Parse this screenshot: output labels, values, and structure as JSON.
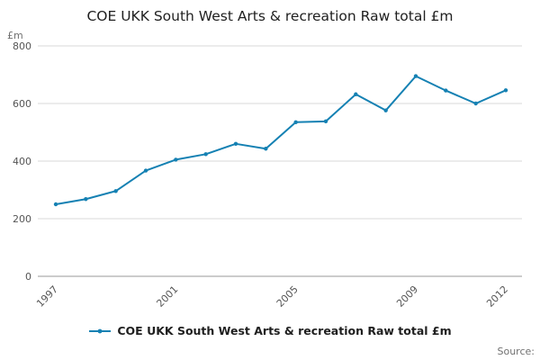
{
  "chart": {
    "title": "COE UKK South West Arts & recreation Raw total £m",
    "y_unit_label": "£m",
    "legend_label": "COE UKK South West Arts & recreation Raw total £m",
    "source_label": "Source:",
    "line_color": "#1581b3",
    "grid_color": "#d9d9d9",
    "axis_color": "#9a9a9a",
    "tick_label_color": "#555555"
  },
  "chart_data": {
    "type": "line",
    "title": "COE UKK South West Arts & recreation Raw total £m",
    "x": [
      1997,
      1998,
      1999,
      2000,
      2001,
      2002,
      2003,
      2004,
      2005,
      2006,
      2007,
      2008,
      2009,
      2010,
      2011,
      2012
    ],
    "values": [
      250,
      268,
      296,
      367,
      405,
      424,
      460,
      443,
      535,
      538,
      632,
      576,
      695,
      645,
      600,
      646
    ],
    "series_name": "COE UKK South West Arts & recreation Raw total £m",
    "xlabel": "",
    "ylabel": "£m",
    "ylim": [
      0,
      800
    ],
    "yticks": [
      0,
      200,
      400,
      600,
      800
    ],
    "xticks": [
      1997,
      2001,
      2005,
      2009,
      2012
    ],
    "grid": true,
    "legend_position": "bottom",
    "markers": true
  }
}
